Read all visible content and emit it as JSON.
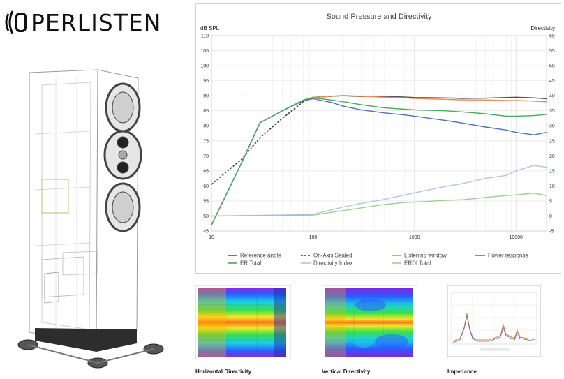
{
  "logo": {
    "text": "PERLISTEN",
    "icon": "speaker-waves-icon"
  },
  "chart_data": {
    "type": "line",
    "title": "Sound Pressure and Directivity",
    "ylabel": "dB SPL",
    "y2label": "Directivity",
    "xscale": "log",
    "xlim": [
      10,
      20000
    ],
    "ylim": [
      45,
      110
    ],
    "y2lim": [
      -5,
      60
    ],
    "x_ticks": [
      "10",
      "100",
      "1000",
      "10000"
    ],
    "y_ticks": [
      "45",
      "50",
      "55",
      "60",
      "65",
      "70",
      "75",
      "80",
      "85",
      "90",
      "95",
      "100",
      "105",
      "110"
    ],
    "y2_ticks": [
      "-5",
      "0",
      "5",
      "10",
      "15",
      "20",
      "25",
      "30",
      "35",
      "40",
      "45",
      "50",
      "55",
      "60"
    ],
    "grid": true,
    "legend_position": "bottom",
    "series": [
      {
        "name": "Reference angle",
        "color": "#555555",
        "dash": "solid",
        "axis": "left",
        "x": [
          10,
          20,
          30,
          50,
          80,
          100,
          150,
          200,
          300,
          500,
          800,
          1000,
          2000,
          3000,
          5000,
          8000,
          10000,
          15000,
          20000
        ],
        "y": [
          47,
          68,
          81,
          85,
          88.5,
          89.5,
          89.8,
          90,
          89.7,
          89.8,
          89.6,
          89.4,
          89.3,
          89.1,
          89.2,
          89.4,
          89.5,
          89.3,
          89.0
        ]
      },
      {
        "name": "On-Axis Sealed",
        "color": "#333333",
        "dash": "dashed",
        "axis": "left",
        "x": [
          10,
          20,
          30,
          50,
          80,
          100,
          150
        ],
        "y": [
          60.5,
          69,
          76,
          82.5,
          88,
          89.4,
          89.8
        ]
      },
      {
        "name": "Listening window",
        "color": "#e8895a",
        "dash": "solid",
        "axis": "left",
        "x": [
          10,
          20,
          30,
          50,
          80,
          100,
          150,
          200,
          300,
          500,
          800,
          1000,
          2000,
          3000,
          5000,
          8000,
          10000,
          15000,
          20000
        ],
        "y": [
          47,
          68,
          81,
          85,
          88.5,
          89.5,
          89.8,
          90.1,
          89.8,
          89.5,
          89.3,
          89.1,
          88.8,
          88.6,
          88.6,
          88.4,
          88.4,
          88.2,
          88.0
        ]
      },
      {
        "name": "Power response",
        "color": "#4f72b8",
        "dash": "solid",
        "axis": "left",
        "x": [
          10,
          20,
          30,
          50,
          80,
          100,
          150,
          200,
          300,
          500,
          800,
          1000,
          2000,
          3000,
          5000,
          8000,
          10000,
          15000,
          20000
        ],
        "y": [
          47,
          68,
          81,
          85,
          88.3,
          89,
          87.8,
          86.5,
          85.3,
          84.3,
          83.6,
          83.2,
          81.8,
          80.9,
          79.6,
          78.6,
          77.8,
          77.0,
          77.8
        ]
      },
      {
        "name": "ER Total",
        "color": "#4caa5c",
        "dash": "solid",
        "axis": "left",
        "x": [
          10,
          20,
          30,
          50,
          80,
          100,
          150,
          200,
          300,
          500,
          800,
          1000,
          2000,
          3000,
          5000,
          8000,
          10000,
          15000,
          20000
        ],
        "y": [
          47,
          68,
          81,
          85,
          88.5,
          89.3,
          88.6,
          88,
          87,
          86,
          85.5,
          85.3,
          85,
          84.6,
          84,
          83.2,
          83.2,
          83.4,
          83.8
        ]
      },
      {
        "name": "Directivity Index",
        "color": "#b0c4ea",
        "dash": "solid",
        "axis": "right",
        "x": [
          10,
          100,
          150,
          200,
          300,
          500,
          800,
          1000,
          2000,
          3000,
          5000,
          8000,
          10000,
          15000,
          20000
        ],
        "y": [
          0,
          0.5,
          2,
          3,
          4.2,
          5.5,
          7,
          7.7,
          9.8,
          10.8,
          12.5,
          13.5,
          15,
          16.8,
          16.2
        ]
      },
      {
        "name": "ERDI Total",
        "color": "#9ccf8c",
        "dash": "solid",
        "axis": "right",
        "x": [
          10,
          100,
          150,
          200,
          300,
          500,
          800,
          1000,
          2000,
          3000,
          5000,
          8000,
          10000,
          15000,
          20000
        ],
        "y": [
          0,
          0.3,
          1.2,
          1.8,
          2.7,
          3.8,
          4.5,
          4.6,
          5.2,
          5.4,
          6.2,
          6.8,
          7.0,
          7.6,
          6.8
        ]
      }
    ]
  },
  "thumbnails": [
    {
      "caption": "Horizontal Directivity"
    },
    {
      "caption": "Vertical Directivity"
    },
    {
      "caption": "Impedance"
    }
  ]
}
